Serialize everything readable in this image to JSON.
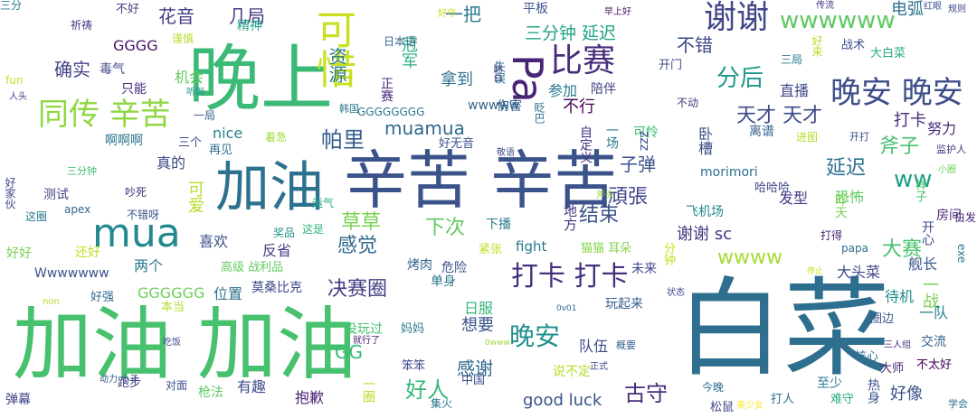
{
  "words": [
    {
      "text": "白菜",
      "color": "#2e6e8e"
    },
    {
      "text": "加油 加油",
      "color": "#47c16e"
    },
    {
      "text": "辛苦 辛苦",
      "color": "#3b528b"
    },
    {
      "text": "加油",
      "color": "#2c728e"
    },
    {
      "text": "晚上",
      "color": "#3aba76"
    },
    {
      "text": "mua",
      "color": "#23898e"
    },
    {
      "text": "同传 辛苦",
      "color": "#8fd744"
    },
    {
      "text": "Pa",
      "color": "#482475"
    },
    {
      "text": "比赛",
      "color": "#472d7b"
    },
    {
      "text": "晚安 晚安",
      "color": "#3d4e8a"
    },
    {
      "text": "可惜",
      "color": "#c8e020"
    },
    {
      "text": "谢谢",
      "color": "#404688"
    },
    {
      "text": "打卡 打卡",
      "color": "#46307e"
    },
    {
      "text": "wwwwww",
      "color": "#5ec962"
    },
    {
      "text": "分后",
      "color": "#1f998a"
    },
    {
      "text": "晚安",
      "color": "#21908d"
    },
    {
      "text": "天才 天才",
      "color": "#3e4989"
    },
    {
      "text": "帕里",
      "color": "#365d8d"
    },
    {
      "text": "确实",
      "color": "#414487"
    },
    {
      "text": "花音",
      "color": "#433e85"
    },
    {
      "text": "几局",
      "color": "#443a83"
    },
    {
      "text": "一把",
      "color": "#2a788e"
    },
    {
      "text": "三分钟 延迟",
      "color": "#20a386"
    },
    {
      "text": "不错",
      "color": "#3f4889"
    },
    {
      "text": "草草",
      "color": "#7ad151"
    },
    {
      "text": "感觉",
      "color": "#31688e"
    },
    {
      "text": "结束",
      "color": "#3b528b"
    },
    {
      "text": "下次",
      "color": "#5ec962"
    },
    {
      "text": "决赛圈",
      "color": "#433e85"
    },
    {
      "text": "好人",
      "color": "#37b878"
    },
    {
      "text": "古守",
      "color": "#472d7b"
    },
    {
      "text": "ww",
      "color": "#1fa188"
    },
    {
      "text": "延迟",
      "color": "#2c728e"
    },
    {
      "text": "頑張",
      "color": "#414487"
    },
    {
      "text": "斧子",
      "color": "#46c06f"
    },
    {
      "text": "子弹",
      "color": "#3a548c"
    },
    {
      "text": "冠军",
      "color": "#2db27d"
    },
    {
      "text": "谢谢 sc",
      "color": "#453882"
    },
    {
      "text": "大赛",
      "color": "#4ac16d"
    },
    {
      "text": "wwww",
      "color": "#a8db34"
    },
    {
      "text": "muamua",
      "color": "#31688e"
    },
    {
      "text": "拿到",
      "color": "#2d718e"
    },
    {
      "text": "不行",
      "color": "#440154"
    },
    {
      "text": "打卡",
      "color": "#472c7a"
    },
    {
      "text": "直播",
      "color": "#3e4989"
    },
    {
      "text": "卧槽",
      "color": "#3d4d8a"
    },
    {
      "text": "努力",
      "color": "#482878"
    },
    {
      "text": "一战",
      "color": "#7ad151"
    },
    {
      "text": "感谢",
      "color": "#31688e"
    },
    {
      "text": "好像",
      "color": "#3b528b"
    },
    {
      "text": "good luck",
      "color": "#3b528b"
    },
    {
      "text": "喜欢",
      "color": "#3b528b"
    },
    {
      "text": "两个",
      "color": "#2a788e"
    },
    {
      "text": "位置",
      "color": "#2d708e"
    },
    {
      "text": "测试",
      "color": "#404688"
    },
    {
      "text": "真的",
      "color": "#3f4788"
    },
    {
      "text": "可爱",
      "color": "#b5de2b"
    },
    {
      "text": "毒气",
      "color": "#3e4989"
    },
    {
      "text": "GGGG",
      "color": "#471164"
    },
    {
      "text": "参加",
      "color": "#29798e"
    },
    {
      "text": "待机",
      "color": "#21908d"
    },
    {
      "text": "舰长",
      "color": "#39568c"
    },
    {
      "text": "样子",
      "color": "#4ac16d"
    },
    {
      "text": "morimori",
      "color": "#2d708e"
    },
    {
      "text": "反省",
      "color": "#433e85"
    },
    {
      "text": "想要",
      "color": "#3b528b"
    },
    {
      "text": "队伍",
      "color": "#3e4a89"
    },
    {
      "text": "日服",
      "color": "#35b779"
    },
    {
      "text": "玩起来",
      "color": "#34608d"
    },
    {
      "text": "有趣",
      "color": "#3d4e8a"
    },
    {
      "text": "抱歉",
      "color": "#481f70"
    },
    {
      "text": "发型",
      "color": "#443983"
    },
    {
      "text": "恐怖",
      "color": "#5ec962"
    },
    {
      "text": "资源",
      "color": "#297a8e"
    },
    {
      "text": "电弧",
      "color": "#2c728e"
    },
    {
      "text": "大白菜",
      "color": "#29af7f"
    },
    {
      "text": "GG",
      "color": "#38b977"
    },
    {
      "text": "大头菜",
      "color": "#3e4a89"
    },
    {
      "text": "一队",
      "color": "#26828e"
    },
    {
      "text": "nice",
      "color": "#25848e"
    },
    {
      "text": "fight",
      "color": "#2a788e"
    },
    {
      "text": "wwwww",
      "color": "#32658e"
    },
    {
      "text": "GGGGGG",
      "color": "#6ece58"
    },
    {
      "text": "GGGGGGGG",
      "color": "#29798e"
    },
    {
      "text": "Wwwwwww",
      "color": "#3b528b"
    },
    {
      "text": "啊啊啊",
      "color": "#2c738e"
    },
    {
      "text": "飞机场",
      "color": "#23898e"
    },
    {
      "text": "哈哈哈",
      "color": "#3f4788"
    },
    {
      "text": "房间",
      "color": "#482979"
    },
    {
      "text": "papa",
      "color": "#2e6e8e"
    },
    {
      "text": "打得",
      "color": "#482071"
    },
    {
      "text": "昨天",
      "color": "#7ad151"
    },
    {
      "text": "开心",
      "color": "#3e4a89"
    },
    {
      "text": "地方",
      "color": "#463480"
    },
    {
      "text": "烤肉",
      "color": "#34618d"
    },
    {
      "text": "危险",
      "color": "#3a538b"
    },
    {
      "text": "单身",
      "color": "#2a778e"
    },
    {
      "text": "好好",
      "color": "#7ad151"
    },
    {
      "text": "还好",
      "color": "#c2df23"
    },
    {
      "text": "精神",
      "color": "#1f9f88"
    },
    {
      "text": "机会",
      "color": "#5ec962"
    },
    {
      "text": "只能",
      "color": "#482878"
    },
    {
      "text": "平板",
      "color": "#3b528b"
    },
    {
      "text": "伤害",
      "color": "#365c8d"
    },
    {
      "text": "陪伴",
      "color": "#414487"
    },
    {
      "text": "可怜",
      "color": "#3bbb75"
    },
    {
      "text": "离谱",
      "color": "#34608d"
    },
    {
      "text": "进图",
      "color": "#b5de2b"
    },
    {
      "text": "三局",
      "color": "#2a778e"
    },
    {
      "text": "战术",
      "color": "#3b528b"
    },
    {
      "text": "开门",
      "color": "#3f4889"
    },
    {
      "text": "不动",
      "color": "#453882"
    },
    {
      "text": "圈边",
      "color": "#39568c"
    },
    {
      "text": "交流",
      "color": "#33638d"
    },
    {
      "text": "核心",
      "color": "#2d718e"
    },
    {
      "text": "大师",
      "color": "#481f70"
    },
    {
      "text": "不太好",
      "color": "#440154"
    },
    {
      "text": "至少",
      "color": "#2a788e"
    },
    {
      "text": "难守",
      "color": "#29af7f"
    },
    {
      "text": "打人",
      "color": "#2f6b8e"
    },
    {
      "text": "松鼠",
      "color": "#3f4788"
    },
    {
      "text": "着急",
      "color": "#9fda3a"
    },
    {
      "text": "再见",
      "color": "#2c728e"
    },
    {
      "text": "三个",
      "color": "#3e4a89"
    },
    {
      "text": "奖品",
      "color": "#21918c"
    },
    {
      "text": "这是",
      "color": "#31b57b"
    },
    {
      "text": "运气",
      "color": "#22a785"
    },
    {
      "text": "高级 战利品",
      "color": "#65cb5e"
    },
    {
      "text": "莫桑比克",
      "color": "#3e4989"
    },
    {
      "text": "本当",
      "color": "#b2dd2d"
    },
    {
      "text": "好强",
      "color": "#30698e"
    },
    {
      "text": "不错呀",
      "color": "#3b528b"
    },
    {
      "text": "apex",
      "color": "#32658e"
    },
    {
      "text": "这圈",
      "color": "#2a788e"
    },
    {
      "text": "吵死",
      "color": "#46307e"
    },
    {
      "text": "三分钟",
      "color": "#43bf71"
    },
    {
      "text": "好家伙",
      "color": "#3f4889"
    },
    {
      "text": "一局",
      "color": "#375b8d"
    },
    {
      "text": "fun",
      "color": "#c8e020"
    },
    {
      "text": "人头",
      "color": "#3e4a89"
    },
    {
      "text": "听到",
      "color": "#21908d"
    },
    {
      "text": "祈祷",
      "color": "#46307e"
    },
    {
      "text": "不好",
      "color": "#424086"
    },
    {
      "text": "谨慎",
      "color": "#b5de2b"
    },
    {
      "text": "日本语",
      "color": "#33638d"
    },
    {
      "text": "好守",
      "color": "#c8e020"
    },
    {
      "text": "早上好",
      "color": "#471164"
    },
    {
      "text": "传流",
      "color": "#453581"
    },
    {
      "text": "红眼",
      "color": "#3a548c"
    },
    {
      "text": "规则",
      "color": "#3f4889"
    },
    {
      "text": "好来",
      "color": "#b5de2b"
    },
    {
      "text": "开打",
      "color": "#3e4989"
    },
    {
      "text": "监护人",
      "color": "#443a83"
    },
    {
      "text": "小圈",
      "color": "#6ece58"
    },
    {
      "text": "白发",
      "color": "#482071"
    },
    {
      "text": "exe",
      "color": "#2a788e"
    },
    {
      "text": "停止",
      "color": "#c8e020"
    },
    {
      "text": "三人组",
      "color": "#472c7a"
    },
    {
      "text": "热身",
      "color": "#3b528b"
    },
    {
      "text": "学会",
      "color": "#2c728e"
    },
    {
      "text": "美少女",
      "color": "#fde725"
    },
    {
      "text": "今晚",
      "color": "#2e6e8e"
    },
    {
      "text": "说不定",
      "color": "#b5de2b"
    },
    {
      "text": "正式",
      "color": "#3e4a89"
    },
    {
      "text": "概要",
      "color": "#34618d"
    },
    {
      "text": "妈妈",
      "color": "#2a788e"
    },
    {
      "text": "没玩过",
      "color": "#46c06f"
    },
    {
      "text": "就行了",
      "color": "#482071"
    },
    {
      "text": "0v01",
      "color": "#32648e"
    },
    {
      "text": "0www",
      "color": "#a0da39"
    },
    {
      "text": "中国",
      "color": "#3d4e8a"
    },
    {
      "text": "笨笨",
      "color": "#3e4989"
    },
    {
      "text": "集火",
      "color": "#2a788e"
    },
    {
      "text": "一圈",
      "color": "#b8de29"
    },
    {
      "text": "枪法",
      "color": "#5ec962"
    },
    {
      "text": "对面",
      "color": "#3b528b"
    },
    {
      "text": "跑步",
      "color": "#433e85"
    },
    {
      "text": "弹幕",
      "color": "#414487"
    },
    {
      "text": "动力 小子",
      "color": "#34608d"
    },
    {
      "text": "non",
      "color": "#b5de2b"
    },
    {
      "text": "吃饭",
      "color": "#3e4989"
    },
    {
      "text": "下播",
      "color": "#297a8e"
    },
    {
      "text": "猫猫 耳朵",
      "color": "#84d44b"
    },
    {
      "text": "紧张",
      "color": "#c2df23"
    },
    {
      "text": "未来",
      "color": "#3e4989"
    },
    {
      "text": "分钟",
      "color": "#c8e020"
    },
    {
      "text": "状态",
      "color": "#3e4989"
    },
    {
      "text": "zzz",
      "color": "#3e4989"
    },
    {
      "text": "一场",
      "color": "#2a788e"
    },
    {
      "text": "自定义",
      "color": "#46307e"
    },
    {
      "text": "斧头",
      "color": "#99d83c"
    },
    {
      "text": "敬语",
      "color": "#3e4989"
    },
    {
      "text": "好无音",
      "color": "#3b528b"
    },
    {
      "text": "眨巴",
      "color": "#2c728e"
    },
    {
      "text": "失误",
      "color": "#2c728e"
    },
    {
      "text": "翻白",
      "color": "#3f4889"
    },
    {
      "text": "韩国",
      "color": "#2a788e"
    },
    {
      "text": "正赛",
      "color": "#482979"
    },
    {
      "text": "三分",
      "color": "#2a788e"
    }
  ]
}
